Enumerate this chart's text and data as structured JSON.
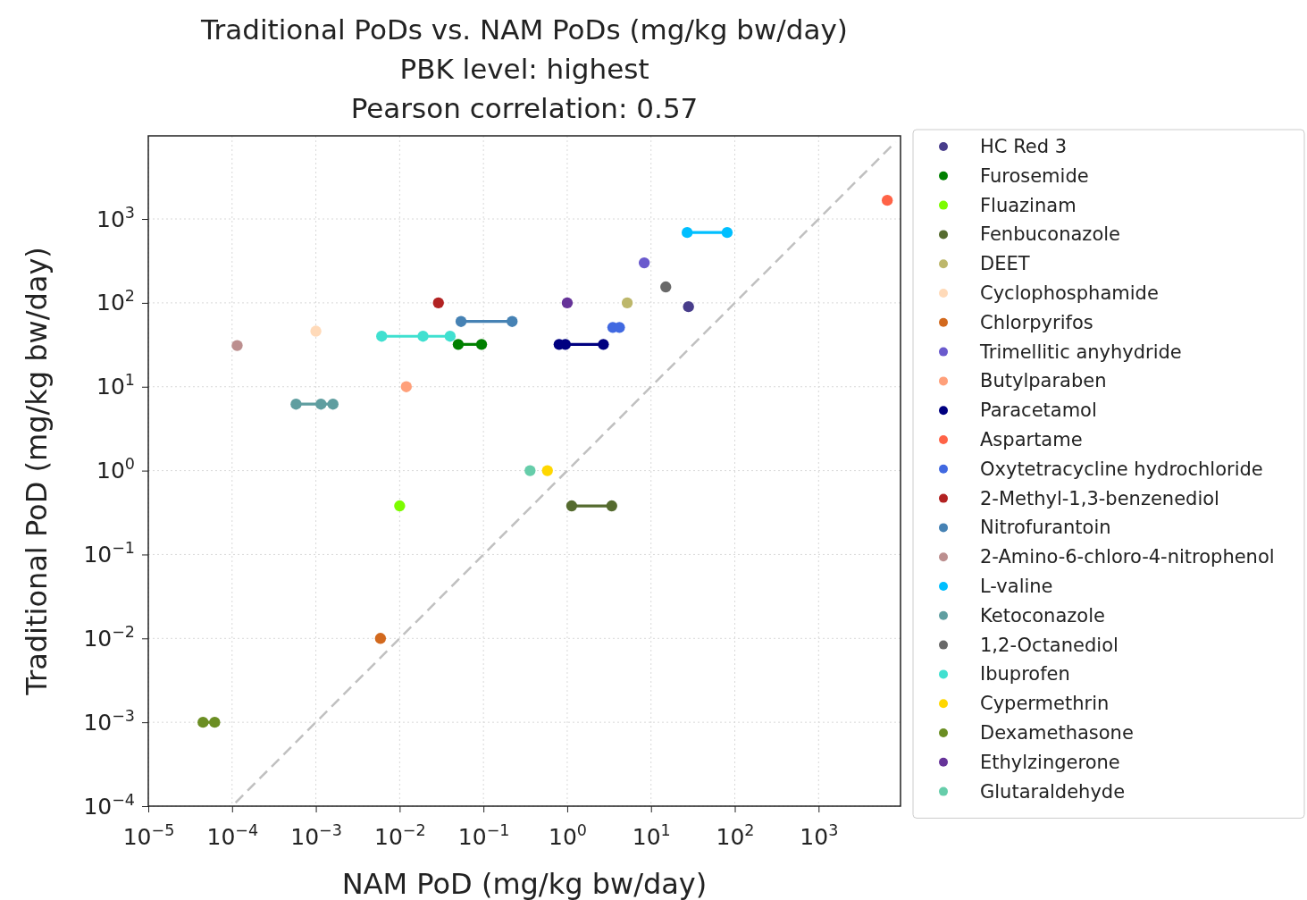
{
  "chart_data": {
    "type": "line",
    "title": "Traditional PoDs vs. NAM PoDs (mg/kg bw/day)\nPBK level: highest\nPearson correlation: 0.57",
    "xlabel": "NAM PoD (mg/kg bw/day)",
    "ylabel": "Traditional PoD (mg/kg bw/day)",
    "log": "xy",
    "grid": true,
    "legend": "right",
    "marker": "circle",
    "xlim": [
      1e-05,
      9500
    ],
    "ylim": [
      0.0001,
      9800
    ],
    "xticks": [
      {
        "value": 1e-05,
        "label": "10$^{−5}$"
      },
      {
        "value": 0.0001,
        "label": "10$^{−4}$"
      },
      {
        "value": 0.001,
        "label": "10$^{−3}$"
      },
      {
        "value": 0.01,
        "label": "10$^{−2}$"
      },
      {
        "value": 0.1,
        "label": "10$^{−1}$"
      },
      {
        "value": 1,
        "label": "10$^{0}$"
      },
      {
        "value": 10,
        "label": "10$^{1}$"
      },
      {
        "value": 100,
        "label": "10$^{2}$"
      },
      {
        "value": 1000,
        "label": "10$^{3}$"
      }
    ],
    "yticks": [
      {
        "value": 0.0001,
        "label": "10$^{−4}$"
      },
      {
        "value": 0.001,
        "label": "10$^{−3}$"
      },
      {
        "value": 0.01,
        "label": "10$^{−2}$"
      },
      {
        "value": 0.1,
        "label": "10$^{−1}$"
      },
      {
        "value": 1,
        "label": "10$^{0}$"
      },
      {
        "value": 10,
        "label": "10$^{1}$"
      },
      {
        "value": 100,
        "label": "10$^{2}$"
      },
      {
        "value": 1000,
        "label": "10$^{3}$"
      }
    ],
    "series": [
      {
        "type": "line",
        "color": "#c0c0c0",
        "line_style": "dashed",
        "marker": "none",
        "x": [
          0.00011,
          8300
        ],
        "values": [
          0.00011,
          8300
        ]
      },
      {
        "name": "HC Red 3",
        "color": "#483d8b",
        "x": [
          28
        ],
        "values": [
          90
        ]
      },
      {
        "name": "Furosemide",
        "color": "#008000",
        "x": [
          0.05,
          0.095
        ],
        "values": [
          32,
          32
        ]
      },
      {
        "name": "Fluazinam",
        "color": "#7cfc00",
        "x": [
          0.01
        ],
        "values": [
          0.38
        ]
      },
      {
        "name": "Fenbuconazole",
        "color": "#556b2f",
        "x": [
          1.13,
          3.4
        ],
        "values": [
          0.38,
          0.38
        ]
      },
      {
        "name": "DEET",
        "color": "#bdb76b",
        "x": [
          5.2
        ],
        "values": [
          100
        ]
      },
      {
        "name": "Cyclophosphamide",
        "color": "#ffdab9",
        "x": [
          0.001
        ],
        "values": [
          46
        ]
      },
      {
        "name": "Chlorpyrifos",
        "color": "#d2691e",
        "x": [
          0.0059
        ],
        "values": [
          0.01
        ]
      },
      {
        "name": "Trimellitic anyhydride",
        "color": "#6a5acd",
        "x": [
          8.3
        ],
        "values": [
          300
        ]
      },
      {
        "name": "Butylparaben",
        "color": "#ffa07a",
        "x": [
          0.012
        ],
        "values": [
          10
        ]
      },
      {
        "name": "Paracetamol",
        "color": "#000080",
        "x": [
          0.8,
          0.95,
          2.7
        ],
        "values": [
          32,
          32,
          32
        ]
      },
      {
        "name": "Aspartame",
        "color": "#ff6347",
        "x": [
          6600
        ],
        "values": [
          1670
        ]
      },
      {
        "type": "scatter",
        "name": "Oxytetracycline hydrochloride",
        "color": "#4169e1",
        "x": [
          3.5,
          4.2
        ],
        "values": [
          51,
          51
        ]
      },
      {
        "name": "2-Methyl-1,3-benzenediol",
        "color": "#b22222",
        "x": [
          0.029
        ],
        "values": [
          100
        ]
      },
      {
        "name": "Nitrofurantoin",
        "color": "#4682b4",
        "x": [
          0.054,
          0.22
        ],
        "values": [
          60,
          60
        ]
      },
      {
        "name": "2-Amino-6-chloro-4-nitrophenol",
        "color": "#bc8f8f",
        "x": [
          0.000115
        ],
        "values": [
          31
        ]
      },
      {
        "name": "L-valine",
        "color": "#00bfff",
        "x": [
          27,
          81
        ],
        "values": [
          690,
          690
        ]
      },
      {
        "name": "Ketoconazole",
        "color": "#5f9ea0",
        "x": [
          0.00058,
          0.00115,
          0.0016
        ],
        "values": [
          6.2,
          6.2,
          6.2
        ]
      },
      {
        "name": "1,2-Octanediol",
        "color": "#696969",
        "x": [
          15
        ],
        "values": [
          155
        ]
      },
      {
        "name": "Ibuprofen",
        "color": "#40e0d0",
        "x": [
          0.0061,
          0.019,
          0.04
        ],
        "values": [
          40,
          40,
          40
        ]
      },
      {
        "name": "Cypermethrin",
        "color": "#ffd700",
        "x": [
          0.58
        ],
        "values": [
          1
        ]
      },
      {
        "name": "Dexamethasone",
        "color": "#6b8e23",
        "x": [
          4.5e-05,
          6.2e-05
        ],
        "values": [
          0.001,
          0.001
        ]
      },
      {
        "name": "Ethylzingerone",
        "color": "#663399",
        "x": [
          1
        ],
        "values": [
          100
        ]
      },
      {
        "name": "Glutaraldehyde",
        "color": "#66cdaa",
        "x": [
          0.36
        ],
        "values": [
          1
        ]
      }
    ]
  }
}
